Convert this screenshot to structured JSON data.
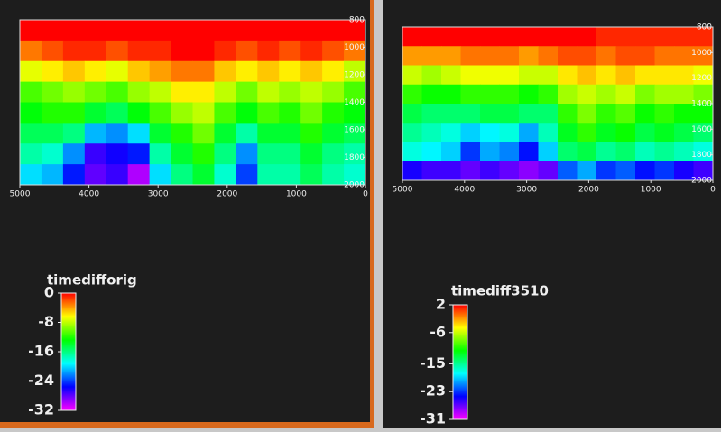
{
  "chart_data": [
    {
      "type": "heatmap",
      "colorbar_label": "timedifforig",
      "xlim": [
        5000,
        0
      ],
      "xticks": [
        5000,
        4000,
        3000,
        2000,
        1000,
        0
      ],
      "ylim": [
        2000,
        800
      ],
      "yticks": [
        800,
        1000,
        1200,
        1400,
        1600,
        1800,
        2000
      ],
      "zlim": [
        -32,
        0
      ],
      "zticks": [
        0,
        -8,
        -16,
        -24,
        -32
      ],
      "z": [
        [
          0,
          0,
          0,
          0,
          0,
          0,
          0,
          0,
          0,
          0,
          0,
          0,
          0,
          0,
          0,
          0
        ],
        [
          -3,
          -2,
          -1,
          -1,
          -2,
          -1,
          -1,
          0,
          0,
          -1,
          -2,
          -1,
          -2,
          -1,
          -2,
          -3
        ],
        [
          -7,
          -6,
          -5,
          -6,
          -7,
          -5,
          -4,
          -3,
          -3,
          -5,
          -6,
          -5,
          -6,
          -5,
          -6,
          -8
        ],
        [
          -11,
          -10,
          -9,
          -10,
          -11,
          -9,
          -8,
          -6,
          -6,
          -8,
          -10,
          -8,
          -9,
          -8,
          -9,
          -11
        ],
        [
          -13,
          -12,
          -12,
          -14,
          -15,
          -13,
          -11,
          -9,
          -8,
          -11,
          -13,
          -11,
          -12,
          -10,
          -12,
          -13
        ],
        [
          -15,
          -15,
          -16,
          -21,
          -22,
          -20,
          -14,
          -12,
          -10,
          -14,
          -17,
          -14,
          -14,
          -12,
          -14,
          -15
        ],
        [
          -17,
          -18,
          -22,
          -27,
          -26,
          -25,
          -17,
          -14,
          -12,
          -16,
          -22,
          -16,
          -16,
          -14,
          -16,
          -17
        ],
        [
          -20,
          -21,
          -25,
          -28,
          -27,
          -30,
          -20,
          -16,
          -14,
          -18,
          -24,
          -17,
          -17,
          -15,
          -17,
          -18
        ]
      ]
    },
    {
      "type": "heatmap",
      "colorbar_label": "timediff3510",
      "xlim": [
        5000,
        0
      ],
      "xticks": [
        5000,
        4000,
        3000,
        2000,
        1000,
        0
      ],
      "ylim": [
        2000,
        800
      ],
      "yticks": [
        800,
        1000,
        1200,
        1400,
        1600,
        1800,
        2000
      ],
      "zlim": [
        -31,
        2
      ],
      "zticks": [
        2,
        -6,
        -15,
        -23,
        -31
      ],
      "z": [
        [
          2,
          2,
          2,
          2,
          2,
          2,
          2,
          2,
          2,
          2,
          1,
          1,
          1,
          1,
          1,
          1
        ],
        [
          -2,
          -2,
          -2,
          -1,
          -1,
          -1,
          -2,
          -1,
          0,
          0,
          -1,
          0,
          0,
          -1,
          -1,
          -1
        ],
        [
          -6,
          -7,
          -6,
          -5,
          -5,
          -5,
          -6,
          -6,
          -4,
          -3,
          -4,
          -3,
          -4,
          -4,
          -4,
          -5
        ],
        [
          -10,
          -11,
          -11,
          -10,
          -10,
          -10,
          -11,
          -10,
          -7,
          -6,
          -7,
          -6,
          -8,
          -7,
          -7,
          -8
        ],
        [
          -13,
          -14,
          -14,
          -14,
          -13,
          -13,
          -14,
          -14,
          -10,
          -8,
          -10,
          -9,
          -11,
          -10,
          -11,
          -11
        ],
        [
          -15,
          -16,
          -17,
          -19,
          -18,
          -17,
          -20,
          -16,
          -12,
          -10,
          -12,
          -11,
          -13,
          -12,
          -13,
          -14
        ],
        [
          -17,
          -18,
          -19,
          -23,
          -20,
          -21,
          -24,
          -19,
          -14,
          -13,
          -15,
          -14,
          -16,
          -15,
          -16,
          -17
        ],
        [
          -25,
          -26,
          -26,
          -27,
          -26,
          -27,
          -28,
          -27,
          -22,
          -20,
          -23,
          -22,
          -24,
          -23,
          -25,
          -26
        ]
      ]
    }
  ]
}
